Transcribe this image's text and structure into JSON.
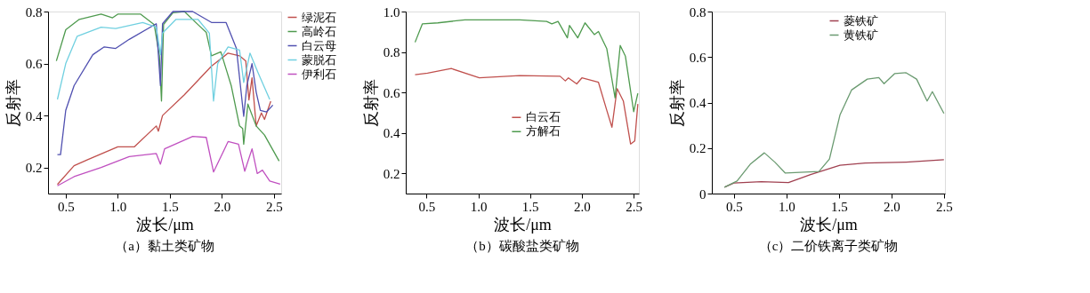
{
  "chart_data": [
    {
      "type": "line",
      "title": "（a）黏土类矿物",
      "xlabel": "波长/μm",
      "ylabel": "反射率",
      "xlim": [
        0.33,
        2.57
      ],
      "ylim": [
        0.1,
        0.8
      ],
      "xticks": [
        {
          "value": 0.5,
          "label": "0.5"
        },
        {
          "value": 1.0,
          "label": "1.0"
        },
        {
          "value": 1.5,
          "label": "1.5"
        },
        {
          "value": 2.0,
          "label": "2.0"
        },
        {
          "value": 2.5,
          "label": "2.5"
        }
      ],
      "yticks": [
        0.2,
        0.4,
        0.6,
        0.8
      ],
      "grid": false,
      "legend": "top right",
      "marker": "none",
      "line_style": "solid",
      "series": [
        {
          "name": "绿泥石",
          "color": "#c0504d",
          "x": [
            0.42,
            0.58,
            0.71,
            1.0,
            1.16,
            1.37,
            1.39,
            1.43,
            1.64,
            1.9,
            2.06,
            2.17,
            2.23,
            2.26,
            2.29,
            2.33,
            2.38,
            2.41,
            2.47
          ],
          "values": [
            0.135,
            0.207,
            0.23,
            0.28,
            0.28,
            0.36,
            0.34,
            0.4,
            0.48,
            0.59,
            0.64,
            0.63,
            0.61,
            0.46,
            0.545,
            0.36,
            0.41,
            0.385,
            0.455
          ]
        },
        {
          "name": "高岭石",
          "color": "#4e9a4e",
          "x": [
            0.41,
            0.5,
            0.63,
            0.84,
            0.95,
            1.0,
            1.22,
            1.35,
            1.4,
            1.42,
            1.44,
            1.53,
            1.64,
            1.77,
            1.85,
            1.9,
            1.99,
            2.09,
            2.17,
            2.2,
            2.21,
            2.25,
            2.33,
            2.41,
            2.55
          ],
          "values": [
            0.61,
            0.73,
            0.77,
            0.79,
            0.776,
            0.79,
            0.79,
            0.75,
            0.63,
            0.456,
            0.75,
            0.795,
            0.8,
            0.75,
            0.72,
            0.63,
            0.645,
            0.515,
            0.36,
            0.35,
            0.29,
            0.444,
            0.36,
            0.325,
            0.225
          ]
        },
        {
          "name": "白云母",
          "color": "#5050b0",
          "x": [
            0.42,
            0.45,
            0.5,
            0.58,
            0.76,
            0.87,
            0.98,
            1.11,
            1.37,
            1.41,
            1.43,
            1.53,
            1.72,
            1.9,
            2.04,
            2.14,
            2.21,
            2.24,
            2.29,
            2.33,
            2.37,
            2.43,
            2.49
          ],
          "values": [
            0.25,
            0.25,
            0.42,
            0.515,
            0.634,
            0.664,
            0.658,
            0.693,
            0.753,
            0.515,
            0.753,
            0.8,
            0.8,
            0.758,
            0.758,
            0.658,
            0.397,
            0.515,
            0.6,
            0.49,
            0.42,
            0.414,
            0.44
          ]
        },
        {
          "name": "蒙脱石",
          "color": "#70d0e0",
          "x": [
            0.42,
            0.5,
            0.61,
            0.84,
            0.98,
            1.24,
            1.37,
            1.41,
            1.43,
            1.56,
            1.77,
            1.88,
            1.92,
            1.96,
            2.06,
            2.17,
            2.21,
            2.27,
            2.35,
            2.46
          ],
          "values": [
            0.462,
            0.6,
            0.705,
            0.74,
            0.735,
            0.758,
            0.74,
            0.634,
            0.717,
            0.77,
            0.77,
            0.717,
            0.456,
            0.6,
            0.664,
            0.652,
            0.527,
            0.64,
            0.563,
            0.462
          ]
        },
        {
          "name": "伊利石",
          "color": "#c050c0",
          "x": [
            0.42,
            0.58,
            0.84,
            1.11,
            1.37,
            1.41,
            1.45,
            1.72,
            1.85,
            1.92,
            2.06,
            2.16,
            2.22,
            2.29,
            2.34,
            2.39,
            2.46,
            2.56
          ],
          "values": [
            0.13,
            0.165,
            0.2,
            0.242,
            0.254,
            0.213,
            0.272,
            0.32,
            0.316,
            0.183,
            0.3,
            0.29,
            0.186,
            0.272,
            0.177,
            0.19,
            0.148,
            0.136
          ]
        }
      ]
    },
    {
      "type": "line",
      "title": "（b）碳酸盐类矿物",
      "xlabel": "波长/μm",
      "ylabel": "反射率",
      "xlim": [
        0.3,
        2.55
      ],
      "ylim": [
        0.1,
        1.0
      ],
      "xticks": [
        {
          "value": 0.5,
          "label": "0.5"
        },
        {
          "value": 1.0,
          "label": "1.0"
        },
        {
          "value": 1.5,
          "label": "1.5"
        },
        {
          "value": 2.0,
          "label": "2.0"
        },
        {
          "value": 2.5,
          "label": "2.5"
        }
      ],
      "yticks": [
        0.2,
        0.4,
        0.6,
        0.8,
        {
          "value": 1.0,
          "label": "1.0"
        }
      ],
      "grid": false,
      "legend": "bottom",
      "marker": "none",
      "line_style": "solid",
      "series": [
        {
          "name": "白云石",
          "color": "#c0504d",
          "x": [
            0.39,
            0.51,
            0.74,
            1.01,
            1.4,
            1.79,
            1.84,
            1.87,
            1.95,
            2.0,
            2.16,
            2.24,
            2.29,
            2.34,
            2.4,
            2.47,
            2.51,
            2.54
          ],
          "values": [
            0.688,
            0.695,
            0.718,
            0.672,
            0.683,
            0.68,
            0.657,
            0.672,
            0.642,
            0.672,
            0.65,
            0.512,
            0.428,
            0.619,
            0.558,
            0.345,
            0.36,
            0.543
          ]
        },
        {
          "name": "方解石",
          "color": "#4e9a4e",
          "x": [
            0.39,
            0.46,
            0.61,
            0.87,
            1.4,
            1.66,
            1.71,
            1.77,
            1.86,
            1.88,
            1.96,
            2.03,
            2.12,
            2.16,
            2.24,
            2.32,
            2.37,
            2.42,
            2.5,
            2.54
          ],
          "values": [
            0.848,
            0.939,
            0.944,
            0.959,
            0.959,
            0.951,
            0.939,
            0.951,
            0.87,
            0.931,
            0.87,
            0.944,
            0.886,
            0.901,
            0.817,
            0.573,
            0.832,
            0.779,
            0.505,
            0.596
          ]
        }
      ]
    },
    {
      "type": "line",
      "title": "（c）二价铁离子类矿物",
      "xlabel": "波长/μm",
      "ylabel": "反射率",
      "xlim": [
        0.29,
        2.51
      ],
      "ylim": [
        0,
        0.8
      ],
      "xticks": [
        {
          "value": 0.5,
          "label": "0.5"
        },
        {
          "value": 1.0,
          "label": "1.0"
        },
        {
          "value": 1.5,
          "label": "1.5"
        },
        {
          "value": 2.0,
          "label": "2.0"
        },
        {
          "value": 2.5,
          "label": "2.5"
        }
      ],
      "yticks": [
        {
          "value": 0,
          "label": "0"
        },
        0.2,
        0.4,
        0.6,
        0.8
      ],
      "grid": false,
      "legend": "top",
      "marker": "none",
      "line_style": "solid",
      "series": [
        {
          "name": "菱铁矿",
          "color": "#a04050",
          "x": [
            0.41,
            0.5,
            0.76,
            1.02,
            1.23,
            1.51,
            1.75,
            2.14,
            2.5
          ],
          "values": [
            0.028,
            0.046,
            0.052,
            0.048,
            0.083,
            0.124,
            0.134,
            0.138,
            0.149
          ]
        },
        {
          "name": "黄铁矿",
          "color": "#6a9a70",
          "x": [
            0.41,
            0.53,
            0.66,
            0.79,
            0.89,
            0.99,
            1.31,
            1.41,
            1.51,
            1.62,
            1.77,
            1.88,
            1.93,
            2.03,
            2.14,
            2.24,
            2.34,
            2.39,
            2.5
          ],
          "values": [
            0.028,
            0.055,
            0.131,
            0.179,
            0.138,
            0.09,
            0.097,
            0.152,
            0.345,
            0.455,
            0.503,
            0.51,
            0.483,
            0.527,
            0.531,
            0.503,
            0.407,
            0.448,
            0.352
          ]
        }
      ]
    }
  ]
}
